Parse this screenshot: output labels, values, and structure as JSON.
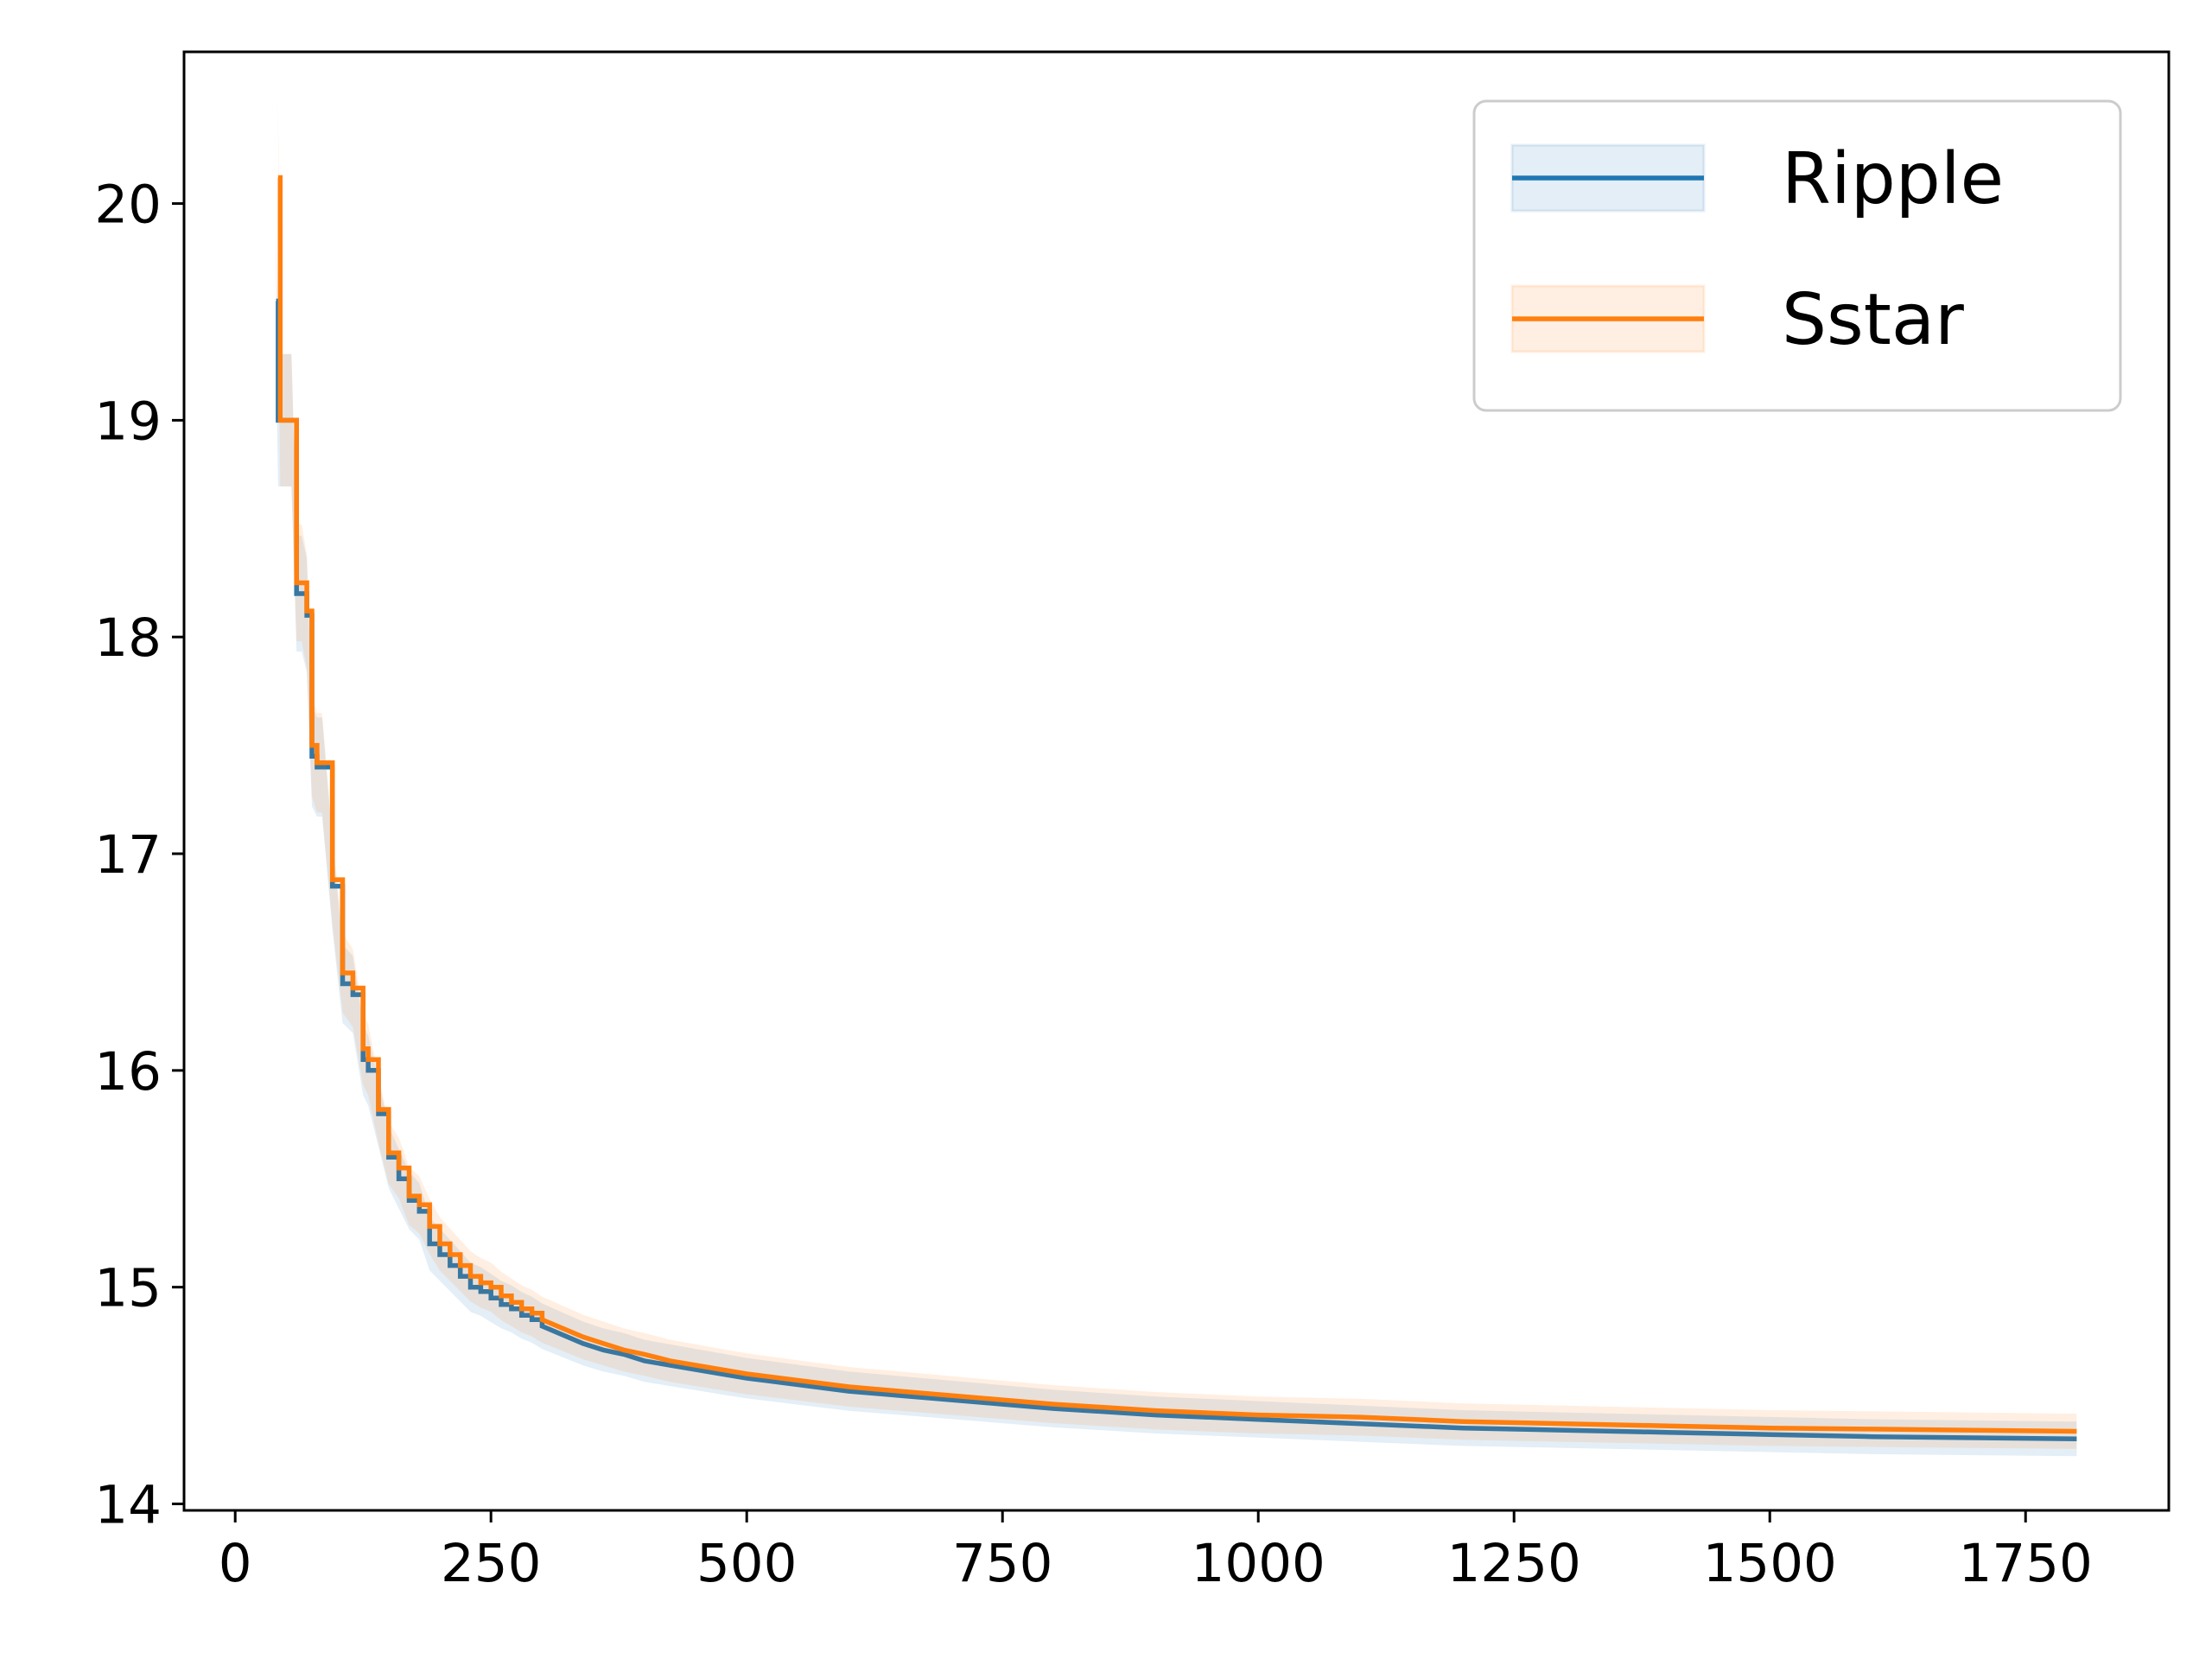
{
  "chart_data": {
    "type": "line",
    "title": "",
    "xlabel": "",
    "ylabel": "",
    "xlim": [
      -50,
      1890
    ],
    "ylim": [
      13.97,
      20.7
    ],
    "xticks": [
      0,
      250,
      500,
      750,
      1000,
      1250,
      1500,
      1750
    ],
    "yticks": [
      14,
      15,
      16,
      17,
      18,
      19,
      20
    ],
    "grid": false,
    "legend_position": "top-right",
    "series": [
      {
        "name": "Ripple",
        "color": "#1f77b4",
        "band_color": "#1f77b4",
        "x": [
          40,
          42,
          55,
          60,
          65,
          70,
          75,
          80,
          85,
          95,
          105,
          115,
          125,
          130,
          140,
          150,
          160,
          170,
          180,
          190,
          200,
          210,
          220,
          230,
          240,
          250,
          260,
          270,
          280,
          290,
          300,
          320,
          340,
          360,
          380,
          400,
          425,
          450,
          475,
          500,
          550,
          600,
          650,
          700,
          750,
          800,
          900,
          1000,
          1100,
          1200,
          1300,
          1400,
          1500,
          1600,
          1700,
          1800
        ],
        "y": [
          19.55,
          19.0,
          19.0,
          18.2,
          18.2,
          18.1,
          17.45,
          17.4,
          17.4,
          16.85,
          16.4,
          16.35,
          16.05,
          16.0,
          15.8,
          15.6,
          15.5,
          15.4,
          15.35,
          15.2,
          15.15,
          15.1,
          15.05,
          15.0,
          14.98,
          14.95,
          14.92,
          14.9,
          14.87,
          14.85,
          14.82,
          14.78,
          14.74,
          14.71,
          14.69,
          14.66,
          14.64,
          14.62,
          14.6,
          14.58,
          14.55,
          14.52,
          14.5,
          14.48,
          14.46,
          14.44,
          14.41,
          14.39,
          14.37,
          14.35,
          14.34,
          14.33,
          14.32,
          14.31,
          14.305,
          14.3
        ]
      },
      {
        "name": "Sstar",
        "color": "#ff7f0e",
        "band_color": "#ff7f0e",
        "x": [
          42,
          44,
          55,
          60,
          65,
          70,
          75,
          80,
          85,
          95,
          105,
          115,
          125,
          130,
          140,
          150,
          160,
          170,
          180,
          190,
          200,
          210,
          220,
          230,
          240,
          250,
          260,
          270,
          280,
          290,
          300,
          320,
          340,
          360,
          380,
          400,
          425,
          450,
          475,
          500,
          550,
          600,
          650,
          700,
          750,
          800,
          900,
          1000,
          1100,
          1200,
          1300,
          1400,
          1500,
          1600,
          1700,
          1800
        ],
        "y": [
          20.12,
          19.0,
          19.0,
          18.25,
          18.25,
          18.12,
          17.5,
          17.42,
          17.42,
          16.88,
          16.45,
          16.38,
          16.1,
          16.05,
          15.82,
          15.62,
          15.55,
          15.42,
          15.38,
          15.28,
          15.2,
          15.15,
          15.1,
          15.05,
          15.02,
          15.0,
          14.96,
          14.93,
          14.9,
          14.88,
          14.85,
          14.81,
          14.77,
          14.74,
          14.71,
          14.69,
          14.66,
          14.64,
          14.62,
          14.6,
          14.57,
          14.54,
          14.52,
          14.5,
          14.48,
          14.46,
          14.43,
          14.41,
          14.4,
          14.38,
          14.37,
          14.36,
          14.35,
          14.345,
          14.34,
          14.335
        ]
      }
    ]
  }
}
